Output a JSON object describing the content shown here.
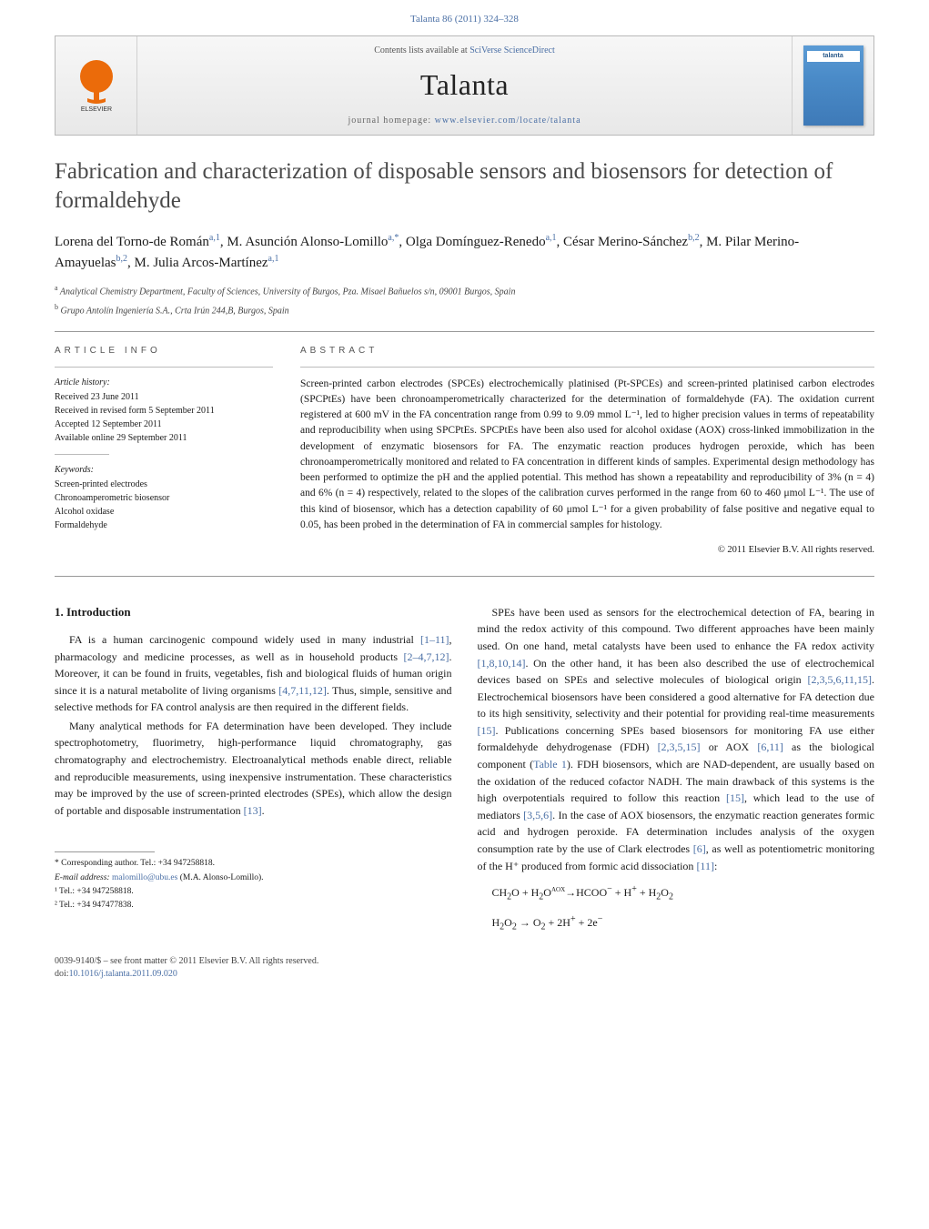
{
  "header_citation": "Talanta 86 (2011) 324–328",
  "banner": {
    "contents_prefix": "Contents lists available at ",
    "contents_link": "SciVerse ScienceDirect",
    "journal": "Talanta",
    "homepage_prefix": "journal homepage: ",
    "homepage_url": "www.elsevier.com/locate/talanta",
    "publisher_name": "ELSEVIER",
    "cover_label": "talanta"
  },
  "title": "Fabrication and characterization of disposable sensors and biosensors for detection of formaldehyde",
  "authors": [
    {
      "name": "Lorena del Torno-de Román",
      "marks": "a,1"
    },
    {
      "name": "M. Asunción Alonso-Lomillo",
      "marks": "a,*"
    },
    {
      "name": "Olga Domínguez-Renedo",
      "marks": "a,1"
    },
    {
      "name": "César Merino-Sánchez",
      "marks": "b,2"
    },
    {
      "name": "M. Pilar Merino-Amayuelas",
      "marks": "b,2"
    },
    {
      "name": "M. Julia Arcos-Martínez",
      "marks": "a,1"
    }
  ],
  "affiliations": [
    {
      "mark": "a",
      "text": "Analytical Chemistry Department, Faculty of Sciences, University of Burgos, Pza. Misael Bañuelos s/n, 09001 Burgos, Spain"
    },
    {
      "mark": "b",
      "text": "Grupo Antolín Ingeniería S.A., Crta Irún 244,B, Burgos, Spain"
    }
  ],
  "article_info": {
    "label": "ARTICLE INFO",
    "history_label": "Article history:",
    "history": [
      "Received 23 June 2011",
      "Received in revised form 5 September 2011",
      "Accepted 12 September 2011",
      "Available online 29 September 2011"
    ],
    "keywords_label": "Keywords:",
    "keywords": [
      "Screen-printed electrodes",
      "Chronoamperometric biosensor",
      "Alcohol oxidase",
      "Formaldehyde"
    ]
  },
  "abstract": {
    "label": "ABSTRACT",
    "text": "Screen-printed carbon electrodes (SPCEs) electrochemically platinised (Pt-SPCEs) and screen-printed platinised carbon electrodes (SPCPtEs) have been chronoamperometrically characterized for the determination of formaldehyde (FA). The oxidation current registered at 600 mV in the FA concentration range from 0.99 to 9.09 mmol L⁻¹, led to higher precision values in terms of repeatability and reproducibility when using SPCPtEs. SPCPtEs have been also used for alcohol oxidase (AOX) cross-linked immobilization in the development of enzymatic biosensors for FA. The enzymatic reaction produces hydrogen peroxide, which has been chronoamperometrically monitored and related to FA concentration in different kinds of samples. Experimental design methodology has been performed to optimize the pH and the applied potential. This method has shown a repeatability and reproducibility of 3% (n = 4) and 6% (n = 4) respectively, related to the slopes of the calibration curves performed in the range from 60 to 460 μmol L⁻¹. The use of this kind of biosensor, which has a detection capability of 60 μmol L⁻¹ for a given probability of false positive and negative equal to 0.05, has been probed in the determination of FA in commercial samples for histology.",
    "copyright": "© 2011 Elsevier B.V. All rights reserved."
  },
  "body": {
    "heading": "1. Introduction",
    "left_paras": [
      "FA is a human carcinogenic compound widely used in many industrial [1–11], pharmacology and medicine processes, as well as in household products [2–4,7,12]. Moreover, it can be found in fruits, vegetables, fish and biological fluids of human origin since it is a natural metabolite of living organisms [4,7,11,12]. Thus, simple, sensitive and selective methods for FA control analysis are then required in the different fields.",
      "Many analytical methods for FA determination have been developed. They include spectrophotometry, fluorimetry, high-performance liquid chromatography, gas chromatography and electrochemistry. Electroanalytical methods enable direct, reliable and reproducible measurements, using inexpensive instrumentation. These characteristics may be improved by the use of screen-printed electrodes (SPEs), which allow the design of portable and disposable instrumentation [13]."
    ],
    "right_paras": [
      "SPEs have been used as sensors for the electrochemical detection of FA, bearing in mind the redox activity of this compound. Two different approaches have been mainly used. On one hand, metal catalysts have been used to enhance the FA redox activity [1,8,10,14]. On the other hand, it has been also described the use of electrochemical devices based on SPEs and selective molecules of biological origin [2,3,5,6,11,15]. Electrochemical biosensors have been considered a good alternative for FA detection due to its high sensitivity, selectivity and their potential for providing real-time measurements [15]. Publications concerning SPEs based biosensors for monitoring FA use either formaldehyde dehydrogenase (FDH) [2,3,5,15] or AOX [6,11] as the biological component (Table 1). FDH biosensors, which are NAD-dependent, are usually based on the oxidation of the reduced cofactor NADH. The main drawback of this systems is the high overpotentials required to follow this reaction [15], which lead to the use of mediators [3,5,6]. In the case of AOX biosensors, the enzymatic reaction generates formic acid and hydrogen peroxide. FA determination includes analysis of the oxygen consumption rate by the use of Clark electrodes [6], as well as potentiometric monitoring of the H⁺ produced from formic acid dissociation [11]:"
    ],
    "eqn1": "CH₂O + H₂O → HCOO⁻ + H⁺ + H₂O₂",
    "eqn1_label": "AOX",
    "eqn2": "H₂O₂ → O₂ + 2H⁺ + 2e⁻"
  },
  "footnotes": {
    "corr": "* Corresponding author. Tel.: +34 947258818.",
    "email_label": "E-mail address: ",
    "email": "malomillo@ubu.es",
    "email_suffix": " (M.A. Alonso-Lomillo).",
    "tel1": "¹ Tel.: +34 947258818.",
    "tel2": "² Tel.: +34 947477838."
  },
  "footer": {
    "issn_line": "0039-9140/$ – see front matter © 2011 Elsevier B.V. All rights reserved.",
    "doi_prefix": "doi:",
    "doi": "10.1016/j.talanta.2011.09.020"
  },
  "colors": {
    "link": "#4a6fa5",
    "elsevier_orange": "#eb6b0a",
    "cover_blue": "#4a8bc8"
  }
}
